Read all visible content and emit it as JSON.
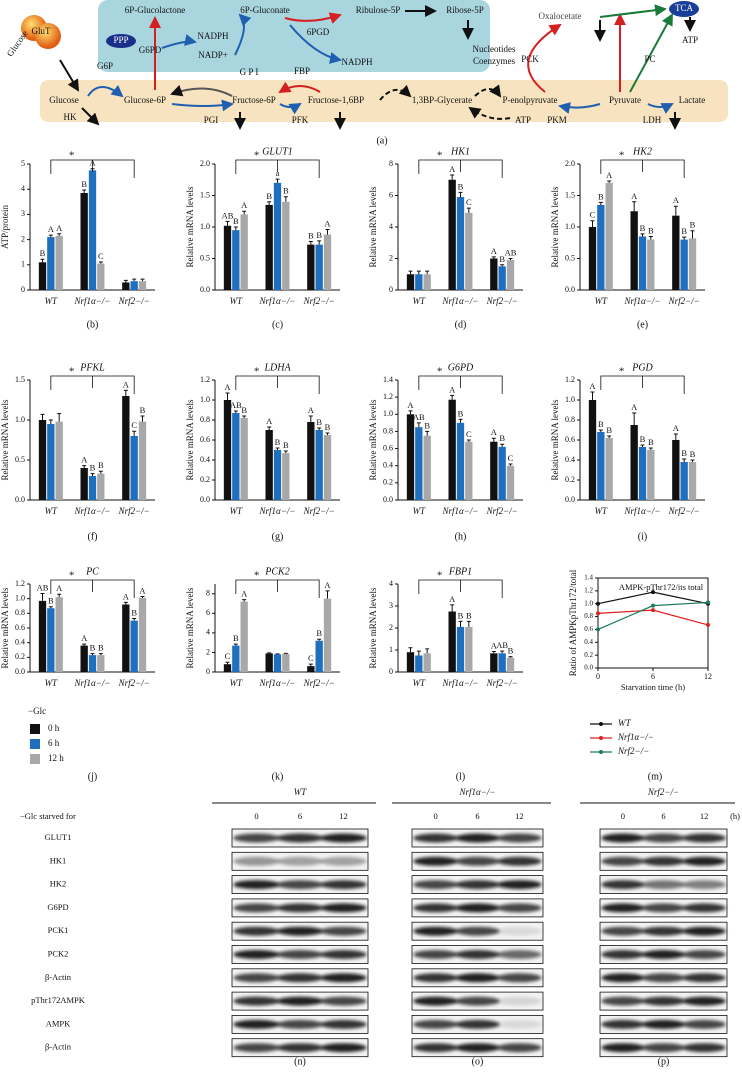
{
  "diagram": {
    "panel": "(a)",
    "labels": [
      "6P-Glucolactone",
      "6P-Gluconate",
      "Ribulose-5P",
      "Ribose-5P",
      "NADPH",
      "NADP+",
      "6PGD",
      "NADPH",
      "Nucleotides",
      "Coenzymes",
      "PPP",
      "G6PD",
      "G6P",
      "G P I",
      "FBP",
      "Glucose",
      "Glucose-6P",
      "Fructose-6P",
      "Fructose-1,6BP",
      "1,3BP-Glycerate",
      "P-enolpyruvate",
      "Pyruvate",
      "Lactate",
      "HK",
      "PGI",
      "PFK",
      "ATP",
      "PKM",
      "LDH",
      "Oxalocetate",
      "TCA",
      "ATP",
      "PCK",
      "PC",
      "Glucose",
      "GluT"
    ]
  },
  "chart_data": [
    {
      "type": "bar",
      "panel": "(b)",
      "ylabel": "ATP/protein",
      "legend_title": "−Glc",
      "significance": "*",
      "categories": [
        "WT",
        "Nrf1α−/−",
        "Nrf2−/−"
      ],
      "ylim": [
        0,
        5
      ],
      "yticks": [
        0,
        1,
        2,
        3,
        4,
        5
      ],
      "series": [
        {
          "name": "0 h",
          "color": "#111111",
          "values": [
            1.1,
            3.85,
            0.3
          ],
          "errors": [
            0.12,
            0.12,
            0.08
          ],
          "letters": [
            "B",
            "B",
            null
          ]
        },
        {
          "name": "6 h",
          "color": "#1f6fbf",
          "values": [
            2.1,
            4.75,
            0.35
          ],
          "errors": [
            0.08,
            0.06,
            0.08
          ],
          "letters": [
            "A",
            "A",
            null
          ]
        },
        {
          "name": "12 h",
          "color": "#a8a8a8",
          "values": [
            2.15,
            1.05,
            0.35
          ],
          "errors": [
            0.08,
            0.06,
            0.08
          ],
          "letters": [
            "A",
            "C",
            null
          ]
        }
      ]
    },
    {
      "type": "bar",
      "panel": "(c)",
      "title": "GLUT1",
      "ylabel": "Relative mRNA levels",
      "significance": "*",
      "categories": [
        "WT",
        "Nrf1α−/−",
        "Nrf2−/−"
      ],
      "ylim": [
        0,
        2
      ],
      "yticks": [
        {
          "value": 0,
          "label": "0.0"
        },
        0.5,
        {
          "value": 1,
          "label": "1.0"
        },
        1.5,
        {
          "value": 2,
          "label": "2.0"
        }
      ],
      "series": [
        {
          "name": "0 h",
          "color": "#111111",
          "values": [
            1.02,
            1.35,
            0.72
          ],
          "errors": [
            0.07,
            0.05,
            0.05
          ],
          "letters": [
            "AB",
            "B",
            "B"
          ]
        },
        {
          "name": "6 h",
          "color": "#1f6fbf",
          "values": [
            0.95,
            1.7,
            0.72
          ],
          "errors": [
            0.05,
            0.06,
            0.06
          ],
          "letters": [
            "B",
            "a",
            "B"
          ]
        },
        {
          "name": "12 h",
          "color": "#a8a8a8",
          "values": [
            1.2,
            1.4,
            0.88
          ],
          "errors": [
            0.05,
            0.08,
            0.08
          ],
          "letters": [
            "A",
            "B",
            "A"
          ]
        }
      ]
    },
    {
      "type": "bar",
      "panel": "(d)",
      "title": "HK1",
      "ylabel": "Relative mRNA levels",
      "significance": "*",
      "categories": [
        "WT",
        "Nrf1α−/−",
        "Nrf2−/−"
      ],
      "ylim": [
        0,
        8
      ],
      "yticks": [
        0,
        2,
        4,
        6,
        8
      ],
      "series": [
        {
          "name": "0 h",
          "color": "#111111",
          "values": [
            1.0,
            7.0,
            2.0
          ],
          "errors": [
            0.2,
            0.3,
            0.1
          ],
          "letters": [
            null,
            "A",
            "A"
          ]
        },
        {
          "name": "6 h",
          "color": "#1f6fbf",
          "values": [
            1.0,
            5.9,
            1.5
          ],
          "errors": [
            0.2,
            0.3,
            0.1
          ],
          "letters": [
            null,
            "B",
            "B"
          ]
        },
        {
          "name": "12 h",
          "color": "#a8a8a8",
          "values": [
            1.0,
            4.9,
            1.9
          ],
          "errors": [
            0.2,
            0.3,
            0.1
          ],
          "letters": [
            null,
            "C",
            "AB"
          ]
        }
      ]
    },
    {
      "type": "bar",
      "panel": "(e)",
      "title": "HK2",
      "ylabel": "Relative mRNA levels",
      "significance": "*",
      "categories": [
        "WT",
        "Nrf1α−/−",
        "Nrf2−/−"
      ],
      "ylim": [
        0,
        2
      ],
      "yticks": [
        {
          "value": 0,
          "label": "0.0"
        },
        0.5,
        {
          "value": 1,
          "label": "1.0"
        },
        1.5,
        {
          "value": 2,
          "label": "2.0"
        }
      ],
      "series": [
        {
          "name": "0 h",
          "color": "#111111",
          "values": [
            1.0,
            1.25,
            1.18
          ],
          "errors": [
            0.1,
            0.15,
            0.15
          ],
          "letters": [
            "C",
            "A",
            "A"
          ]
        },
        {
          "name": "6 h",
          "color": "#1f6fbf",
          "values": [
            1.35,
            0.85,
            0.8
          ],
          "errors": [
            0.04,
            0.04,
            0.04
          ],
          "letters": [
            "B",
            "B",
            "B"
          ]
        },
        {
          "name": "12 h",
          "color": "#a8a8a8",
          "values": [
            1.7,
            0.8,
            0.82
          ],
          "errors": [
            0.03,
            0.05,
            0.12
          ],
          "letters": [
            "A",
            "B",
            "B"
          ]
        }
      ]
    },
    {
      "type": "bar",
      "panel": "(f)",
      "title": "PFKL",
      "ylabel": "Relative mRNA levels",
      "significance": "*",
      "categories": [
        "WT",
        "Nrf1α−/−",
        "Nrf2−/−"
      ],
      "ylim": [
        0,
        1.5
      ],
      "yticks": [
        {
          "value": 0,
          "label": "0.0"
        },
        0.5,
        {
          "value": 1,
          "label": "1.0"
        },
        1.5
      ],
      "series": [
        {
          "name": "0 h",
          "color": "#111111",
          "values": [
            1.0,
            0.4,
            1.3
          ],
          "errors": [
            0.07,
            0.03,
            0.07
          ],
          "letters": [
            null,
            "A",
            "A"
          ]
        },
        {
          "name": "6 h",
          "color": "#1f6fbf",
          "values": [
            0.95,
            0.3,
            0.8
          ],
          "errors": [
            0.05,
            0.03,
            0.06
          ],
          "letters": [
            null,
            "B",
            "C"
          ]
        },
        {
          "name": "12 h",
          "color": "#a8a8a8",
          "values": [
            0.98,
            0.33,
            0.98
          ],
          "errors": [
            0.1,
            0.03,
            0.07
          ],
          "letters": [
            null,
            "B",
            "B"
          ]
        }
      ]
    },
    {
      "type": "bar",
      "panel": "(g)",
      "title": "LDHA",
      "ylabel": "Relative mRNA levels",
      "significance": "*",
      "categories": [
        "WT",
        "Nrf1α−/−",
        "Nrf2−/−"
      ],
      "ylim": [
        0,
        1.2
      ],
      "yticks": [
        {
          "value": 0,
          "label": "0.0"
        },
        0.2,
        0.4,
        0.6,
        0.8,
        {
          "value": 1,
          "label": "1.0"
        },
        1.2
      ],
      "series": [
        {
          "name": "0 h",
          "color": "#111111",
          "values": [
            1.0,
            0.7,
            0.78
          ],
          "errors": [
            0.07,
            0.03,
            0.06
          ],
          "letters": [
            "A",
            "A",
            "A"
          ]
        },
        {
          "name": "6 h",
          "color": "#1f6fbf",
          "values": [
            0.87,
            0.5,
            0.7
          ],
          "errors": [
            0.02,
            0.02,
            0.02
          ],
          "letters": [
            "AB",
            "B",
            "B"
          ]
        },
        {
          "name": "12 h",
          "color": "#a8a8a8",
          "values": [
            0.82,
            0.47,
            0.65
          ],
          "errors": [
            0.02,
            0.02,
            0.02
          ],
          "letters": [
            "B",
            "B",
            "B"
          ]
        }
      ]
    },
    {
      "type": "bar",
      "panel": "(h)",
      "title": "G6PD",
      "ylabel": "Relative mRNA levels",
      "significance": "*",
      "categories": [
        "WT",
        "Nrf1α−/−",
        "Nrf2−/−"
      ],
      "ylim": [
        0,
        1.4
      ],
      "yticks": [
        {
          "value": 0,
          "label": "0.0"
        },
        0.2,
        0.4,
        0.6,
        0.8,
        {
          "value": 1,
          "label": "1.0"
        },
        1.2,
        1.4
      ],
      "series": [
        {
          "name": "0 h",
          "color": "#111111",
          "values": [
            1.0,
            1.17,
            0.68
          ],
          "errors": [
            0.04,
            0.05,
            0.04
          ],
          "letters": [
            "A",
            "A",
            "A"
          ]
        },
        {
          "name": "6 h",
          "color": "#1f6fbf",
          "values": [
            0.85,
            0.9,
            0.62
          ],
          "errors": [
            0.05,
            0.04,
            0.03
          ],
          "letters": [
            "AB",
            "B",
            "B"
          ]
        },
        {
          "name": "12 h",
          "color": "#a8a8a8",
          "values": [
            0.75,
            0.68,
            0.4
          ],
          "errors": [
            0.05,
            0.02,
            0.02
          ],
          "letters": [
            "B",
            "C",
            "C"
          ]
        }
      ]
    },
    {
      "type": "bar",
      "panel": "(i)",
      "title": "PGD",
      "ylabel": "Relative mRNA levels",
      "significance": "*",
      "categories": [
        "WT",
        "Nrf1α−/−",
        "Nrf2−/−"
      ],
      "ylim": [
        0,
        1.2
      ],
      "yticks": [
        {
          "value": 0,
          "label": "0.0"
        },
        0.2,
        0.4,
        0.6,
        0.8,
        {
          "value": 1,
          "label": "1.0"
        },
        1.2
      ],
      "series": [
        {
          "name": "0 h",
          "color": "#111111",
          "values": [
            1.0,
            0.75,
            0.6
          ],
          "errors": [
            0.08,
            0.12,
            0.06
          ],
          "letters": [
            "A",
            "A",
            "A"
          ]
        },
        {
          "name": "6 h",
          "color": "#1f6fbf",
          "values": [
            0.68,
            0.53,
            0.38
          ],
          "errors": [
            0.02,
            0.02,
            0.03
          ],
          "letters": [
            "B",
            "B",
            "B"
          ]
        },
        {
          "name": "12 h",
          "color": "#a8a8a8",
          "values": [
            0.62,
            0.5,
            0.38
          ],
          "errors": [
            0.02,
            0.02,
            0.02
          ],
          "letters": [
            "B",
            "B",
            "B"
          ]
        }
      ]
    },
    {
      "type": "bar",
      "panel": "(j)",
      "title": "PC",
      "ylabel": "Relative mRNA levels",
      "significance": "*",
      "categories": [
        "WT",
        "Nrf1α−/−",
        "Nrf2−/−"
      ],
      "ylim": [
        0,
        1.2
      ],
      "yticks": [
        {
          "value": 0,
          "label": "0.0"
        },
        0.2,
        0.4,
        0.6,
        0.8,
        {
          "value": 1,
          "label": "1.0"
        },
        1.2
      ],
      "series": [
        {
          "name": "0 h",
          "color": "#111111",
          "values": [
            0.97,
            0.36,
            0.92
          ],
          "errors": [
            0.1,
            0.02,
            0.03
          ],
          "letters": [
            "AB",
            "A",
            "A"
          ]
        },
        {
          "name": "6 h",
          "color": "#1f6fbf",
          "values": [
            0.87,
            0.23,
            0.7
          ],
          "errors": [
            0.02,
            0.02,
            0.03
          ],
          "letters": [
            "B",
            "B",
            "B"
          ]
        },
        {
          "name": "12 h",
          "color": "#a8a8a8",
          "values": [
            1.02,
            0.23,
            1.01
          ],
          "errors": [
            0.04,
            0.02,
            0.02
          ],
          "letters": [
            "A",
            "B",
            "A"
          ]
        }
      ]
    },
    {
      "type": "bar",
      "panel": "(k)",
      "title": "PCK2",
      "ylabel": "Relative mRNA levels",
      "significance": "*",
      "categories": [
        "WT",
        "Nrf1α−/−",
        "Nrf2−/−"
      ],
      "ylim": [
        0,
        9
      ],
      "yticks": [
        0,
        2,
        4,
        6,
        8
      ],
      "series": [
        {
          "name": "0 h",
          "color": "#111111",
          "values": [
            0.8,
            1.9,
            0.6
          ],
          "errors": [
            0.2,
            0.05,
            0.2
          ],
          "letters": [
            "C",
            null,
            "C"
          ]
        },
        {
          "name": "6 h",
          "color": "#1f6fbf",
          "values": [
            2.7,
            1.8,
            3.2
          ],
          "errors": [
            0.15,
            0.05,
            0.15
          ],
          "letters": [
            "B",
            null,
            "B"
          ]
        },
        {
          "name": "12 h",
          "color": "#a8a8a8",
          "values": [
            7.2,
            1.85,
            7.5
          ],
          "errors": [
            0.2,
            0.05,
            0.8
          ],
          "letters": [
            "A",
            null,
            "A"
          ]
        }
      ]
    },
    {
      "type": "bar",
      "panel": "(l)",
      "title": "FBP1",
      "ylabel": "Relative mRNA levels",
      "significance": "*",
      "categories": [
        "WT",
        "Nrf1α−/−",
        "Nrf2−/−"
      ],
      "ylim": [
        0,
        4
      ],
      "yticks": [
        0,
        1,
        2,
        3,
        4
      ],
      "series": [
        {
          "name": "0 h",
          "color": "#111111",
          "values": [
            0.9,
            2.75,
            0.85
          ],
          "errors": [
            0.2,
            0.3,
            0.08
          ],
          "letters": [
            null,
            "A",
            "A"
          ]
        },
        {
          "name": "6 h",
          "color": "#1f6fbf",
          "values": [
            0.75,
            2.05,
            0.85
          ],
          "errors": [
            0.2,
            0.25,
            0.1
          ],
          "letters": [
            null,
            "B",
            "AB"
          ]
        },
        {
          "name": "12 h",
          "color": "#a8a8a8",
          "values": [
            0.85,
            2.05,
            0.65
          ],
          "errors": [
            0.2,
            0.25,
            0.05
          ],
          "letters": [
            null,
            "B",
            "B"
          ]
        }
      ]
    },
    {
      "type": "line",
      "panel": "(m)",
      "title": "AMPK-pThr172/its total",
      "ylabel": "Ratio of AMPKpThr172/total",
      "xlabel": "Starvation time (h)",
      "x": [
        0,
        6,
        12
      ],
      "xlim": [
        0,
        12
      ],
      "xticks": [
        0,
        6,
        12
      ],
      "ylim": [
        0,
        1.4
      ],
      "yticks": [
        {
          "value": 0,
          "label": "0.0"
        },
        0.2,
        0.4,
        0.6,
        0.8,
        {
          "value": 1,
          "label": "1.0"
        },
        1.2,
        1.4
      ],
      "series": [
        {
          "name": "WT",
          "color": "#111111",
          "values": [
            1.0,
            1.18,
            1.0
          ]
        },
        {
          "name": "Nrf1α−/−",
          "color": "#e02020",
          "values": [
            0.85,
            0.9,
            0.67
          ]
        },
        {
          "name": "Nrf2−/−",
          "color": "#1a7a5a",
          "values": [
            0.6,
            0.97,
            1.02
          ]
        }
      ]
    }
  ],
  "blots": {
    "groups": [
      "WT",
      "Nrf1α−/−",
      "Nrf2−/−"
    ],
    "header": "−Glc starved for",
    "times": [
      "0",
      "6",
      "12"
    ],
    "unit": "(h)",
    "rows": [
      "GLUT1",
      "HK1",
      "HK2",
      "G6PD",
      "PCK1",
      "PCK2",
      "β-Actin",
      "pThr172AMPK",
      "AMPK",
      "β-Actin"
    ],
    "panels": [
      "(n)",
      "(o)",
      "(p)"
    ]
  }
}
